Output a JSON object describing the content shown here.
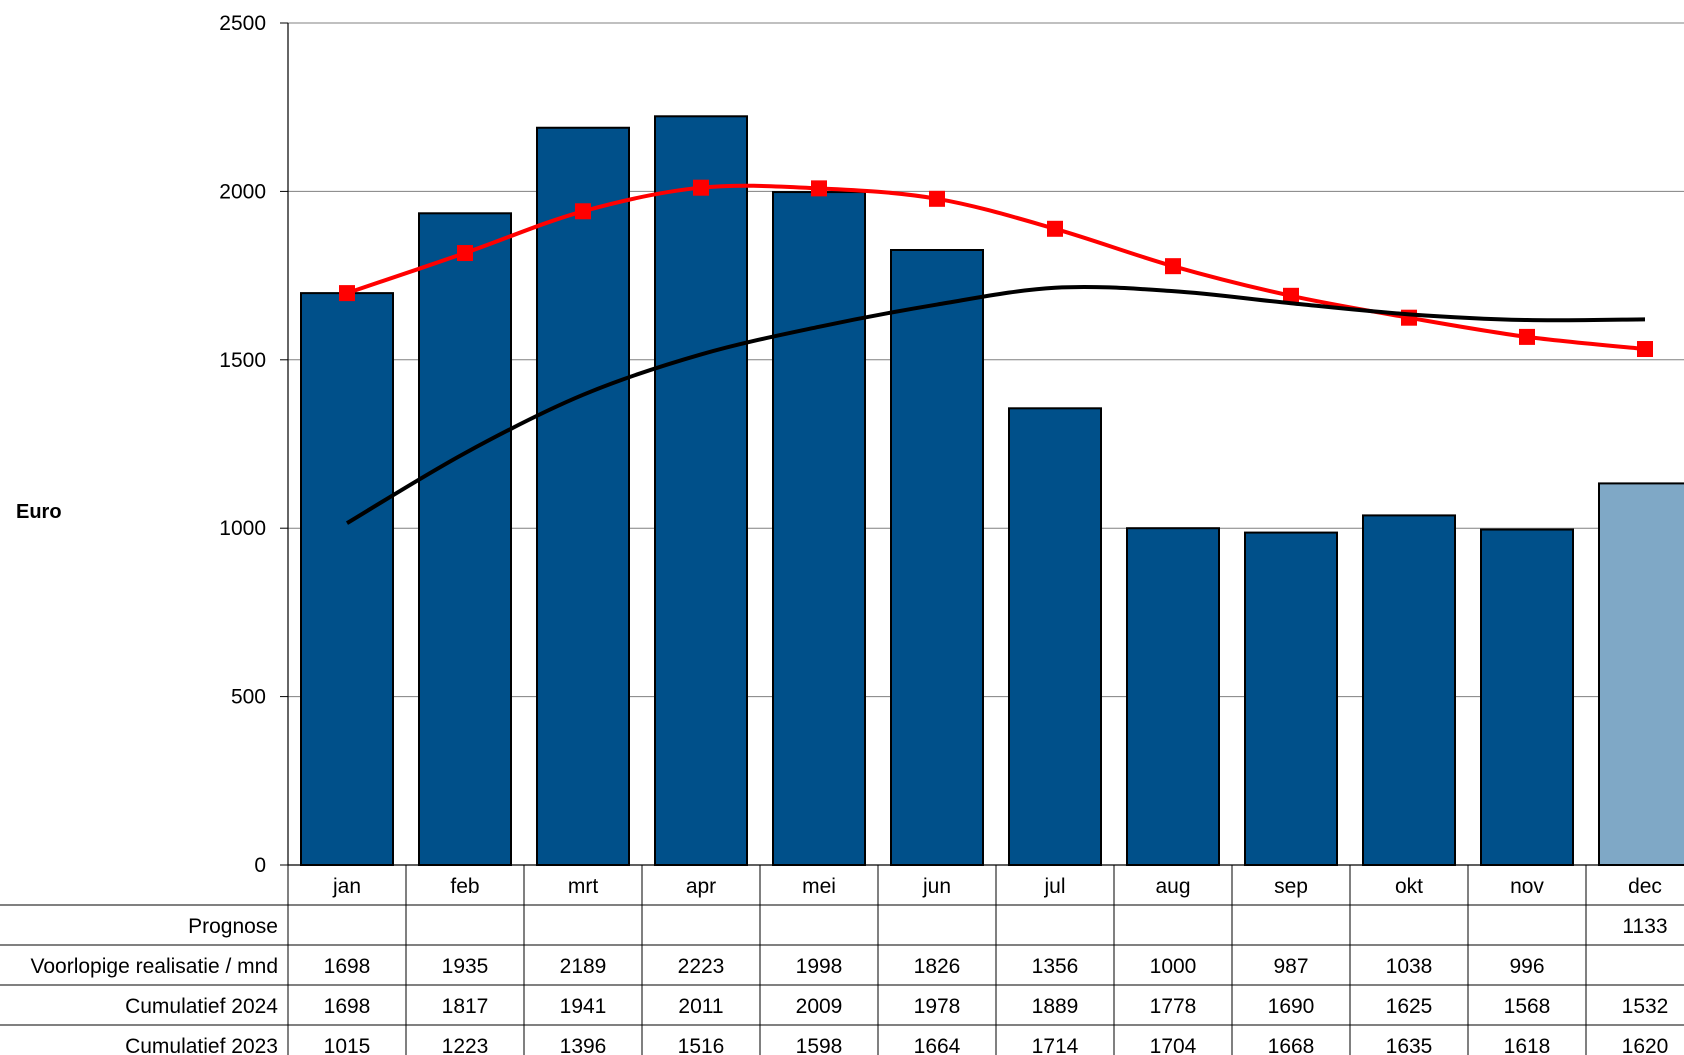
{
  "colors": {
    "bar_actual": "#00508a",
    "bar_forecast": "#7fa8c6",
    "line_2024": "#ff0000",
    "line_2023": "#000000",
    "grid": "#808080"
  },
  "chart_data": {
    "type": "bar",
    "ylabel": "Euro",
    "ylim": [
      0,
      2500
    ],
    "yticks": [
      0,
      500,
      1000,
      1500,
      2000,
      2500
    ],
    "grid": true,
    "categories": [
      "jan",
      "feb",
      "mrt",
      "apr",
      "mei",
      "jun",
      "jul",
      "aug",
      "sep",
      "okt",
      "nov",
      "dec"
    ],
    "series": [
      {
        "name": "Prognose",
        "kind": "bar",
        "color": "#7fa8c6",
        "values": [
          null,
          null,
          null,
          null,
          null,
          null,
          null,
          null,
          null,
          null,
          null,
          1133
        ]
      },
      {
        "name": "Voorlopige realisatie / mnd",
        "kind": "bar",
        "color": "#00508a",
        "values": [
          1698,
          1935,
          2189,
          2223,
          1998,
          1826,
          1356,
          1000,
          987,
          1038,
          996,
          null
        ]
      },
      {
        "name": "Cumulatief 2024",
        "kind": "line",
        "marker": "square",
        "color": "#ff0000",
        "values": [
          1698,
          1817,
          1941,
          2011,
          2009,
          1978,
          1889,
          1778,
          1690,
          1625,
          1568,
          1532
        ]
      },
      {
        "name": "Cumulatief 2023",
        "kind": "line",
        "marker": "none",
        "color": "#000000",
        "values": [
          1015,
          1223,
          1396,
          1516,
          1598,
          1664,
          1714,
          1704,
          1668,
          1635,
          1618,
          1620
        ]
      }
    ],
    "table_rows": [
      {
        "label": "Prognose",
        "values": [
          "",
          "",
          "",
          "",
          "",
          "",
          "",
          "",
          "",
          "",
          "",
          "1133"
        ]
      },
      {
        "label": "Voorlopige realisatie / mnd",
        "values": [
          "1698",
          "1935",
          "2189",
          "2223",
          "1998",
          "1826",
          "1356",
          "1000",
          "987",
          "1038",
          "996",
          ""
        ]
      },
      {
        "label": "Cumulatief 2024",
        "values": [
          "1698",
          "1817",
          "1941",
          "2011",
          "2009",
          "1978",
          "1889",
          "1778",
          "1690",
          "1625",
          "1568",
          "1532"
        ]
      },
      {
        "label": "Cumulatief 2023",
        "values": [
          "1015",
          "1223",
          "1396",
          "1516",
          "1598",
          "1664",
          "1714",
          "1704",
          "1668",
          "1635",
          "1618",
          "1620"
        ]
      }
    ]
  }
}
